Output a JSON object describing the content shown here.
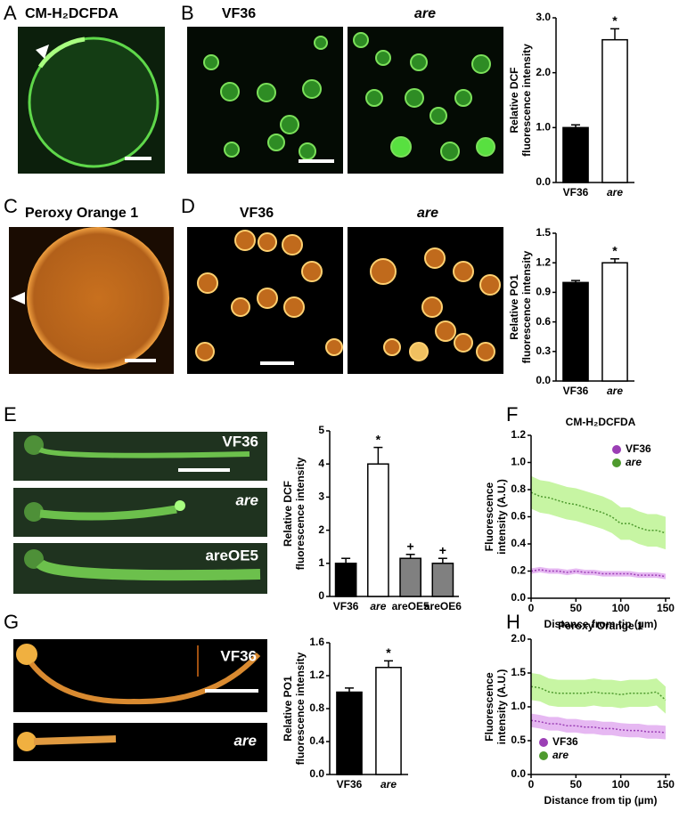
{
  "panels": [
    "A",
    "B",
    "C",
    "D",
    "E",
    "F",
    "G",
    "H"
  ],
  "images": {
    "A": [
      "CM-H₂DCFDA"
    ],
    "B": [
      "VF36",
      "are"
    ],
    "C": [
      "Peroxy Orange 1"
    ],
    "D": [
      "VF36",
      "are"
    ],
    "E": [
      "VF36",
      "are",
      "areOE5"
    ],
    "G": [
      "VF36",
      "are"
    ]
  },
  "chart_data": [
    {
      "type": "bar",
      "ylabel": [
        "Relative DCF",
        "fluorescence intensity"
      ],
      "categories": [
        "VF36",
        "are"
      ],
      "values": [
        1.0,
        2.6
      ],
      "errors": [
        0.05,
        0.2
      ],
      "colors": [
        "#000000",
        "#ffffff"
      ],
      "annotations": [
        null,
        "*"
      ],
      "ylim": [
        0,
        3
      ],
      "yticks": [
        {
          "value": 0,
          "label": "0.0"
        },
        {
          "value": 1,
          "label": "1.0"
        },
        {
          "value": 2,
          "label": "2.0"
        },
        {
          "value": 3,
          "label": "3.0"
        }
      ]
    },
    {
      "type": "bar",
      "ylabel": [
        "Relative PO1",
        "fluorescence intensity"
      ],
      "categories": [
        "VF36",
        "are"
      ],
      "values": [
        1.0,
        1.2
      ],
      "errors": [
        0.02,
        0.04
      ],
      "colors": [
        "#000000",
        "#ffffff"
      ],
      "annotations": [
        null,
        "*"
      ],
      "ylim": [
        0,
        1.5
      ],
      "yticks": [
        {
          "value": 0,
          "label": "0.0"
        },
        0.3,
        0.6,
        0.9,
        1.2,
        1.5
      ]
    },
    {
      "type": "bar",
      "ylabel": [
        "Relative DCF",
        "fluorescence intensity"
      ],
      "categories": [
        "VF36",
        "are",
        "areOE5",
        "areOE6"
      ],
      "values": [
        1.0,
        4.0,
        1.15,
        1.0
      ],
      "errors": [
        0.15,
        0.5,
        0.12,
        0.15
      ],
      "colors": [
        "#000000",
        "#ffffff",
        "#808080",
        "#808080"
      ],
      "annotations": [
        null,
        "*",
        "+",
        "+"
      ],
      "ylim": [
        0,
        5
      ],
      "yticks": [
        0,
        1,
        2,
        3,
        4,
        5
      ]
    },
    {
      "type": "line",
      "title": "CM-H₂DCFDA",
      "xlabel": "Distance from tip (µm)",
      "ylabel": [
        "Fluorescence",
        "intensity (A.U.)"
      ],
      "legend": "upper right",
      "x": [
        0,
        10,
        20,
        30,
        40,
        50,
        60,
        70,
        80,
        90,
        100,
        110,
        120,
        130,
        140,
        150
      ],
      "series": [
        {
          "name": "VF36",
          "color": "#9b3fb5",
          "band_color": "#e0a6ef",
          "values": [
            0.2,
            0.21,
            0.2,
            0.2,
            0.19,
            0.2,
            0.19,
            0.19,
            0.18,
            0.18,
            0.18,
            0.18,
            0.17,
            0.17,
            0.17,
            0.16
          ],
          "errors": [
            0.02,
            0.02,
            0.02,
            0.02,
            0.02,
            0.02,
            0.02,
            0.02,
            0.02,
            0.02,
            0.02,
            0.02,
            0.02,
            0.02,
            0.02,
            0.02
          ]
        },
        {
          "name": "are",
          "color": "#4e9a2e",
          "band_color": "#b9f28c",
          "values": [
            0.78,
            0.75,
            0.74,
            0.72,
            0.7,
            0.69,
            0.67,
            0.65,
            0.63,
            0.6,
            0.55,
            0.55,
            0.52,
            0.5,
            0.5,
            0.48
          ],
          "errors": [
            0.12,
            0.12,
            0.12,
            0.12,
            0.12,
            0.12,
            0.12,
            0.12,
            0.12,
            0.12,
            0.12,
            0.12,
            0.12,
            0.12,
            0.12,
            0.12
          ]
        }
      ],
      "xlim": [
        0,
        155
      ],
      "xticks": [
        0,
        50,
        100,
        150
      ],
      "ylim": [
        0,
        1.2
      ],
      "yticks": [
        {
          "value": 0,
          "label": "0.0"
        },
        0.2,
        0.4,
        0.6,
        0.8,
        {
          "value": 1,
          "label": "1.0"
        },
        1.2
      ]
    },
    {
      "type": "bar",
      "ylabel": [
        "Relative PO1",
        "fluorescence intensity"
      ],
      "categories": [
        "VF36",
        "are"
      ],
      "values": [
        1.0,
        1.3
      ],
      "errors": [
        0.05,
        0.08
      ],
      "colors": [
        "#000000",
        "#ffffff"
      ],
      "annotations": [
        null,
        "*"
      ],
      "ylim": [
        0,
        1.6
      ],
      "yticks": [
        {
          "value": 0,
          "label": "0.0"
        },
        0.4,
        0.8,
        1.2,
        1.6
      ]
    },
    {
      "type": "line",
      "title": "Peroxy Orange 1",
      "xlabel": "Distance from tip (µm)",
      "ylabel": [
        "Fluorescence",
        "intensity (A.U.)"
      ],
      "legend": "lower left",
      "x": [
        0,
        10,
        20,
        30,
        40,
        50,
        60,
        70,
        80,
        90,
        100,
        110,
        120,
        130,
        140,
        150
      ],
      "series": [
        {
          "name": "VF36",
          "color": "#9b3fb5",
          "band_color": "#e0a6ef",
          "values": [
            0.8,
            0.78,
            0.75,
            0.75,
            0.72,
            0.72,
            0.7,
            0.7,
            0.68,
            0.68,
            0.66,
            0.65,
            0.65,
            0.63,
            0.63,
            0.62
          ],
          "errors": [
            0.1,
            0.1,
            0.1,
            0.1,
            0.1,
            0.1,
            0.1,
            0.1,
            0.1,
            0.1,
            0.1,
            0.1,
            0.1,
            0.1,
            0.1,
            0.1
          ]
        },
        {
          "name": "are",
          "color": "#4e9a2e",
          "band_color": "#b9f28c",
          "values": [
            1.3,
            1.28,
            1.22,
            1.2,
            1.2,
            1.2,
            1.2,
            1.22,
            1.2,
            1.2,
            1.18,
            1.2,
            1.2,
            1.2,
            1.22,
            1.1
          ],
          "errors": [
            0.2,
            0.2,
            0.2,
            0.2,
            0.2,
            0.2,
            0.2,
            0.2,
            0.2,
            0.2,
            0.2,
            0.2,
            0.2,
            0.2,
            0.2,
            0.2
          ]
        }
      ],
      "xlim": [
        0,
        155
      ],
      "xticks": [
        0,
        50,
        100,
        150
      ],
      "ylim": [
        0,
        2
      ],
      "yticks": [
        {
          "value": 0,
          "label": "0.0"
        },
        0.5,
        {
          "value": 1,
          "label": "1.0"
        },
        1.5,
        {
          "value": 2,
          "label": "2.0"
        }
      ]
    }
  ]
}
